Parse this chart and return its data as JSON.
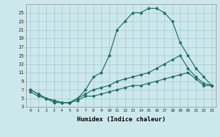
{
  "xlabel": "Humidex (Indice chaleur)",
  "background_color": "#cce8ec",
  "grid_color": "#aacdd4",
  "line_color": "#1e6e64",
  "xlim": [
    -0.5,
    23.5
  ],
  "ylim": [
    3,
    27
  ],
  "yticks": [
    3,
    5,
    7,
    9,
    11,
    13,
    15,
    17,
    19,
    21,
    23,
    25
  ],
  "xticks": [
    0,
    1,
    2,
    3,
    4,
    5,
    6,
    7,
    8,
    9,
    10,
    11,
    12,
    13,
    14,
    15,
    16,
    17,
    18,
    19,
    20,
    21,
    22,
    23
  ],
  "series": [
    {
      "x": [
        0,
        1,
        2,
        3,
        4,
        5,
        6,
        7,
        8,
        9,
        10,
        11,
        12,
        13,
        14,
        15,
        16,
        17,
        18,
        19,
        20,
        21,
        22,
        23
      ],
      "y": [
        7,
        6,
        5,
        4,
        4,
        4,
        5,
        7,
        10,
        11,
        15,
        21,
        23,
        25,
        25,
        26,
        26,
        25,
        23,
        18,
        15,
        12,
        10,
        8
      ]
    },
    {
      "x": [
        0,
        1,
        2,
        3,
        4,
        5,
        6,
        7,
        8,
        9,
        10,
        11,
        12,
        13,
        14,
        15,
        16,
        17,
        18,
        19,
        20,
        21,
        22,
        23
      ],
      "y": [
        7,
        6,
        5,
        4.5,
        4,
        4,
        5,
        6,
        7,
        7.5,
        8,
        9,
        9.5,
        10,
        10.5,
        11,
        12,
        13,
        14,
        15,
        12,
        10,
        8.5,
        8
      ]
    },
    {
      "x": [
        0,
        1,
        2,
        3,
        4,
        5,
        6,
        7,
        8,
        9,
        10,
        11,
        12,
        13,
        14,
        15,
        16,
        17,
        18,
        19,
        20,
        21,
        22,
        23
      ],
      "y": [
        6.5,
        5.5,
        5,
        4.5,
        4,
        4,
        4.5,
        5.5,
        5.5,
        6,
        6.5,
        7,
        7.5,
        8,
        8,
        8.5,
        9,
        9.5,
        10,
        10.5,
        11,
        9.5,
        8,
        8
      ]
    }
  ]
}
